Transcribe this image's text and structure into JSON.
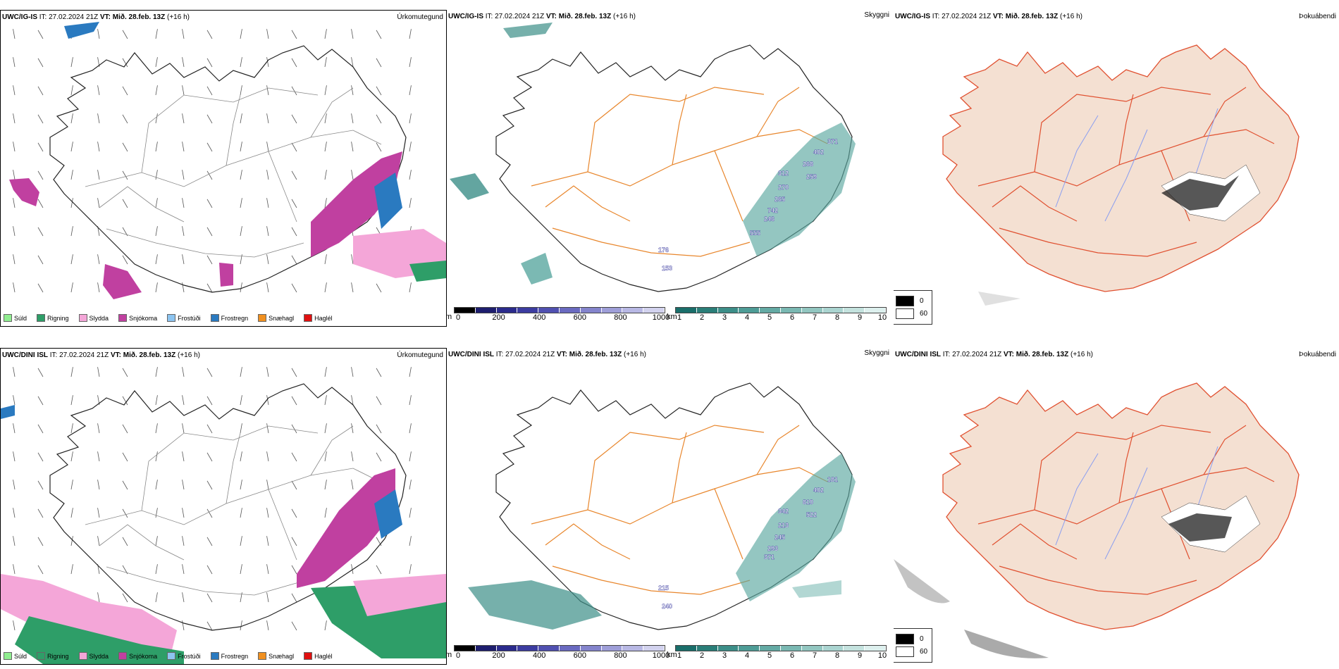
{
  "rows": [
    {
      "model": "UWC/IG-IS",
      "it_label": "IT:",
      "it_value": "27.02.2024 21Z",
      "vt_label": "VT:",
      "vt_value": "Mið. 28.feb. 13Z",
      "lead": "(+16 h)"
    },
    {
      "model": "UWC/DINI ISL",
      "it_label": "IT:",
      "it_value": "27.02.2024 21Z",
      "vt_label": "VT:",
      "vt_value": "Mið. 28.feb. 13Z",
      "lead": "(+16 h)"
    }
  ],
  "titles": {
    "precip": "Úrkomutegund",
    "cloud": "Skyggni",
    "duct": "Þokuábendi"
  },
  "precip_legend": [
    {
      "label": "Súld",
      "color": "#90ee90"
    },
    {
      "label": "Rigning",
      "color": "#2e9e68"
    },
    {
      "label": "Slydda",
      "color": "#f4a6d8"
    },
    {
      "label": "Snjókoma",
      "color": "#c040a0"
    },
    {
      "label": "Frostúði",
      "color": "#8cc4f0"
    },
    {
      "label": "Frostregn",
      "color": "#2a7ac0"
    },
    {
      "label": "Snæhagl",
      "color": "#f09020"
    },
    {
      "label": "Haglél",
      "color": "#e01010"
    }
  ],
  "ceiling_bar": {
    "unit": "m",
    "ticks": [
      "0",
      "200",
      "400",
      "600",
      "800",
      "1000"
    ],
    "colors": [
      "#000000",
      "#1e1e6e",
      "#2b2b8c",
      "#3c3ca0",
      "#5050b0",
      "#6a6ac0",
      "#8484cc",
      "#9e9ed8",
      "#b8b8e4",
      "#d2d2ee"
    ]
  },
  "vis_bar": {
    "unit": "km",
    "ticks": [
      "1",
      "2",
      "3",
      "4",
      "5",
      "6",
      "7",
      "8",
      "9",
      "10"
    ],
    "colors": [
      "#1a6e6a",
      "#2a7e78",
      "#3c8e88",
      "#4e9c96",
      "#64aaa4",
      "#7ab8b2",
      "#92c6c0",
      "#aad4d0",
      "#c4e2de",
      "#ddf0ee"
    ]
  },
  "duct_legend": {
    "rows": [
      {
        "label": "0",
        "color": "#000000"
      },
      {
        "label": "60",
        "color": "#ffffff"
      }
    ]
  },
  "cloud_labels_top": [
    "176",
    "153",
    "312",
    "270",
    "265",
    "742",
    "268",
    "259",
    "402",
    "371",
    "246",
    "555"
  ],
  "cloud_labels_bottom": [
    "215",
    "240",
    "342",
    "213",
    "245",
    "293",
    "810",
    "522",
    "402",
    "181",
    "371"
  ]
}
